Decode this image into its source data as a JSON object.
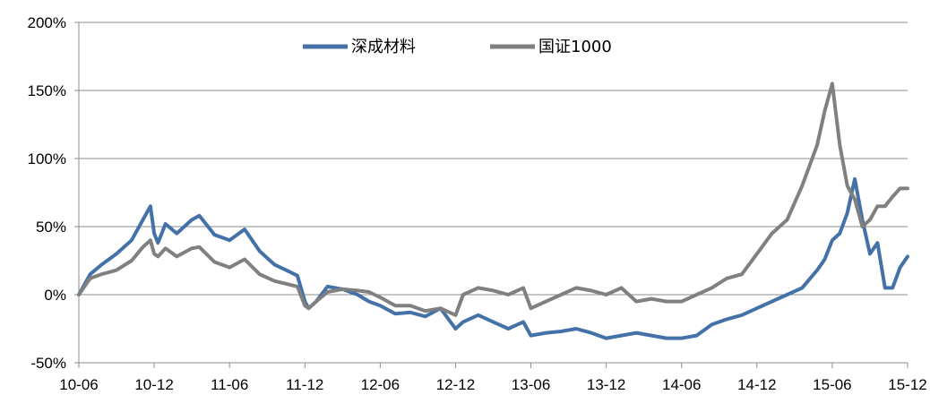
{
  "chart_data": {
    "type": "line",
    "title": "",
    "xlabel": "",
    "ylabel": "",
    "ylim": [
      -50,
      200
    ],
    "yticks": [
      "-50%",
      "0%",
      "50%",
      "100%",
      "150%",
      "200%"
    ],
    "ytick_values": [
      -50,
      0,
      50,
      100,
      150,
      200
    ],
    "xticks": [
      "10-06",
      "10-12",
      "11-06",
      "11-12",
      "12-06",
      "12-12",
      "13-06",
      "13-12",
      "14-06",
      "14-12",
      "15-06",
      "15-12"
    ],
    "grid": "horizontal",
    "legend_position": "top-center",
    "series": [
      {
        "name": "深成材料",
        "color": "#4472A8",
        "x": [
          0,
          0.15,
          0.3,
          0.5,
          0.7,
          0.85,
          0.95,
          1.0,
          1.05,
          1.15,
          1.3,
          1.5,
          1.6,
          1.8,
          2.0,
          2.2,
          2.4,
          2.6,
          2.75,
          2.9,
          3.0,
          3.05,
          3.15,
          3.3,
          3.5,
          3.7,
          3.85,
          4.0,
          4.2,
          4.4,
          4.6,
          4.8,
          5.0,
          5.1,
          5.3,
          5.5,
          5.7,
          5.9,
          6.0,
          6.2,
          6.4,
          6.6,
          6.8,
          7.0,
          7.2,
          7.4,
          7.6,
          7.8,
          8.0,
          8.2,
          8.4,
          8.6,
          8.8,
          9.0,
          9.2,
          9.4,
          9.6,
          9.8,
          9.9,
          10.0,
          10.1,
          10.2,
          10.3,
          10.4,
          10.5,
          10.6,
          10.7,
          10.8,
          10.9,
          11.0
        ],
        "values": [
          0,
          15,
          22,
          30,
          40,
          55,
          65,
          45,
          38,
          52,
          45,
          55,
          58,
          44,
          40,
          48,
          32,
          22,
          18,
          14,
          -5,
          -10,
          -5,
          6,
          4,
          0,
          -5,
          -8,
          -14,
          -13,
          -16,
          -10,
          -25,
          -20,
          -15,
          -20,
          -25,
          -20,
          -30,
          -28,
          -27,
          -25,
          -28,
          -32,
          -30,
          -28,
          -30,
          -32,
          -32,
          -30,
          -22,
          -18,
          -15,
          -10,
          -5,
          0,
          5,
          18,
          26,
          40,
          45,
          60,
          85,
          55,
          30,
          38,
          5,
          5,
          20,
          28
        ]
      },
      {
        "name": "国证1000",
        "color": "#808080",
        "x": [
          0,
          0.15,
          0.3,
          0.5,
          0.7,
          0.85,
          0.95,
          1.0,
          1.05,
          1.15,
          1.3,
          1.5,
          1.6,
          1.8,
          2.0,
          2.2,
          2.4,
          2.6,
          2.75,
          2.9,
          3.0,
          3.05,
          3.15,
          3.3,
          3.5,
          3.7,
          3.85,
          4.0,
          4.2,
          4.4,
          4.6,
          4.8,
          5.0,
          5.1,
          5.3,
          5.5,
          5.7,
          5.9,
          6.0,
          6.2,
          6.4,
          6.6,
          6.8,
          7.0,
          7.2,
          7.4,
          7.6,
          7.8,
          8.0,
          8.2,
          8.4,
          8.6,
          8.8,
          9.0,
          9.2,
          9.4,
          9.6,
          9.8,
          9.9,
          10.0,
          10.1,
          10.2,
          10.3,
          10.4,
          10.5,
          10.6,
          10.7,
          10.8,
          10.9,
          11.0
        ],
        "values": [
          0,
          12,
          15,
          18,
          25,
          35,
          40,
          30,
          28,
          34,
          28,
          34,
          35,
          24,
          20,
          26,
          15,
          10,
          8,
          6,
          -8,
          -10,
          -5,
          2,
          4,
          3,
          2,
          -2,
          -8,
          -8,
          -12,
          -10,
          -15,
          0,
          5,
          3,
          0,
          5,
          -10,
          -5,
          0,
          5,
          3,
          0,
          5,
          -5,
          -3,
          -5,
          -5,
          0,
          5,
          12,
          15,
          30,
          45,
          55,
          80,
          110,
          135,
          155,
          110,
          80,
          70,
          50,
          55,
          65,
          65,
          72,
          78,
          78
        ]
      }
    ]
  }
}
